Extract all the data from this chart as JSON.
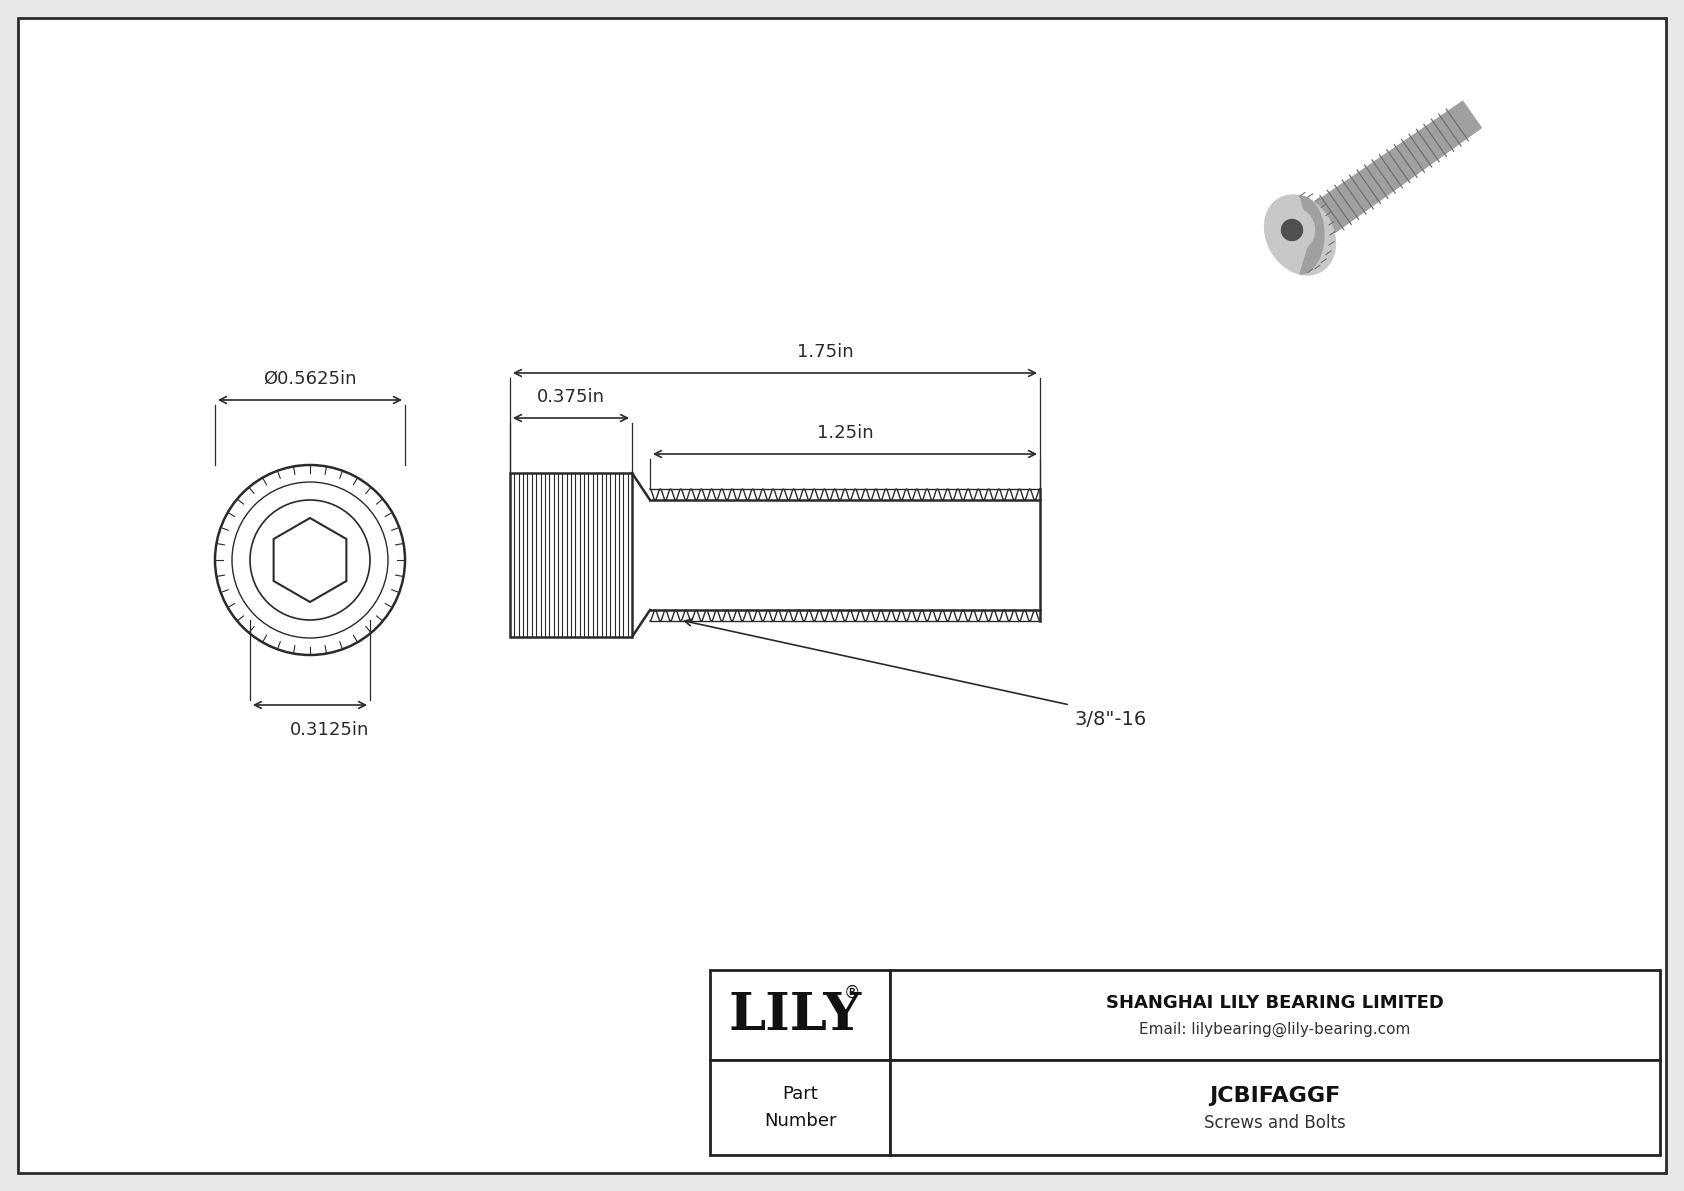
{
  "bg_color": "#e8e8e8",
  "drawing_bg": "#ffffff",
  "line_color": "#2a2a2a",
  "dim_color": "#2a2a2a",
  "title": "JCBIFAGGF",
  "subtitle": "Screws and Bolts",
  "company": "SHANGHAI LILY BEARING LIMITED",
  "email": "Email: lilybearing@lily-bearing.com",
  "dim_outer_diameter": "Ø0.5625in",
  "dim_hex_diameter": "0.3125in",
  "dim_head_length": "0.375in",
  "dim_total_length": "1.75in",
  "dim_thread_length": "1.25in",
  "dim_thread_label": "3/8\"-16"
}
